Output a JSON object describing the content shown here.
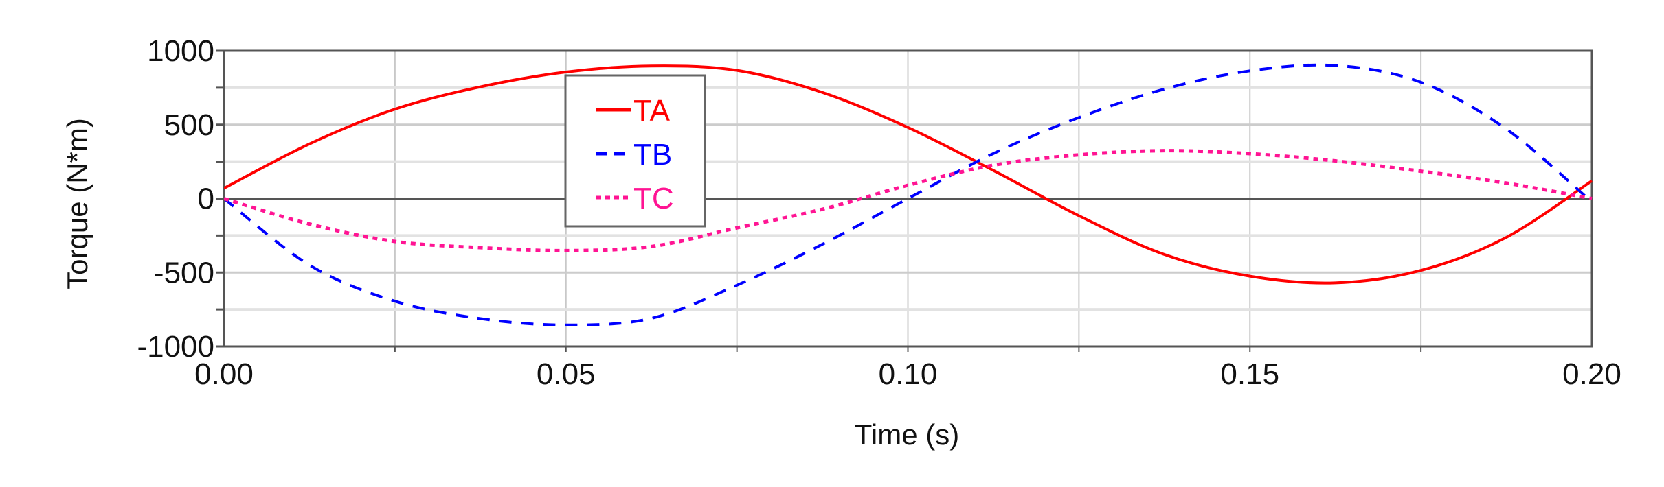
{
  "chart_data": {
    "type": "line",
    "title": "",
    "xlabel": "Time (s)",
    "ylabel": "Torque (N*m)",
    "xlim": [
      0.0,
      0.2
    ],
    "ylim": [
      -1000,
      1000
    ],
    "grid": true,
    "legend_position": "upper-left-inside",
    "x_ticks": [
      "0.00",
      "0.05",
      "0.10",
      "0.15",
      "0.20"
    ],
    "y_ticks": [
      "1000",
      "500",
      "0",
      "-500",
      "-1000"
    ],
    "x": [
      0.0,
      0.0125,
      0.025,
      0.0375,
      0.05,
      0.0625,
      0.075,
      0.0875,
      0.1,
      0.1125,
      0.125,
      0.1375,
      0.15,
      0.1625,
      0.175,
      0.1875,
      0.2
    ],
    "series": [
      {
        "name": "TA",
        "color": "#ff0000",
        "style": "solid",
        "values": [
          70,
          370,
          605,
          756,
          856,
          897,
          867,
          718,
          481,
          190,
          -116,
          -378,
          -525,
          -570,
          -486,
          -262,
          120
        ]
      },
      {
        "name": "TB",
        "color": "#0000ff",
        "style": "dashed",
        "values": [
          0,
          -450,
          -694,
          -812,
          -855,
          -810,
          -586,
          -309,
          0,
          305,
          548,
          741,
          864,
          900,
          787,
          470,
          -23
        ]
      },
      {
        "name": "TC",
        "color": "#ff1493",
        "style": "dotted",
        "values": [
          0,
          -172,
          -290,
          -332,
          -352,
          -324,
          -198,
          -72,
          90,
          226,
          296,
          324,
          304,
          255,
          185,
          105,
          0
        ]
      }
    ]
  }
}
